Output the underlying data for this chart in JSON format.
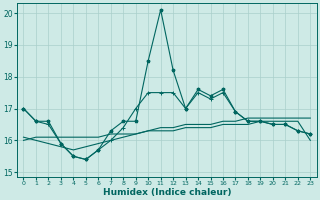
{
  "xlabel": "Humidex (Indice chaleur)",
  "xlim": [
    -0.5,
    23.5
  ],
  "ylim": [
    14.85,
    20.3
  ],
  "yticks": [
    15,
    16,
    17,
    18,
    19,
    20
  ],
  "bg_color": "#ceeae6",
  "grid_color": "#aacfcb",
  "line_color": "#006660",
  "line1": [
    17.0,
    16.6,
    16.6,
    15.9,
    15.5,
    15.4,
    15.7,
    16.3,
    16.6,
    16.6,
    18.5,
    20.1,
    18.2,
    17.0,
    17.6,
    17.4,
    17.6,
    16.9,
    16.6,
    16.6,
    16.5,
    16.5,
    16.3,
    16.2
  ],
  "line2": [
    17.0,
    16.6,
    16.5,
    15.9,
    15.5,
    15.4,
    15.7,
    16.0,
    16.4,
    17.0,
    17.5,
    17.5,
    17.5,
    17.0,
    17.5,
    17.3,
    17.5,
    16.9,
    16.6,
    16.6,
    16.5,
    16.5,
    16.3,
    16.2
  ],
  "line3": [
    16.0,
    16.1,
    16.1,
    16.1,
    16.1,
    16.1,
    16.1,
    16.2,
    16.2,
    16.2,
    16.3,
    16.4,
    16.4,
    16.5,
    16.5,
    16.5,
    16.6,
    16.6,
    16.7,
    16.7,
    16.7,
    16.7,
    16.7,
    16.7
  ],
  "line4": [
    16.1,
    16.0,
    15.9,
    15.8,
    15.7,
    15.8,
    15.9,
    16.0,
    16.1,
    16.2,
    16.3,
    16.3,
    16.3,
    16.4,
    16.4,
    16.4,
    16.5,
    16.5,
    16.5,
    16.6,
    16.6,
    16.6,
    16.6,
    16.0
  ]
}
